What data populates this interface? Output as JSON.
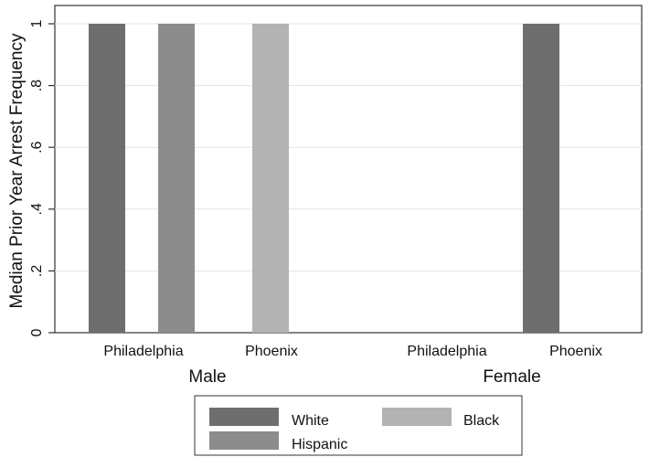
{
  "chart_data": {
    "type": "bar",
    "ylabel": "Median Prior Year Arrest Frequency",
    "ylim": [
      0,
      1
    ],
    "yticks": [
      {
        "value": 0,
        "label": "0"
      },
      {
        "value": 0.2,
        "label": ".2"
      },
      {
        "value": 0.4,
        "label": ".4"
      },
      {
        "value": 0.6,
        "label": ".6"
      },
      {
        "value": 0.8,
        "label": ".8"
      },
      {
        "value": 1,
        "label": "1"
      }
    ],
    "grid": true,
    "legend_position": "bottom",
    "series": [
      {
        "name": "White",
        "color": "#6e6e6e"
      },
      {
        "name": "Hispanic",
        "color": "#8c8c8c"
      },
      {
        "name": "Black",
        "color": "#b3b3b3"
      }
    ],
    "groups": [
      {
        "label": "Male",
        "categories": [
          {
            "label": "Philadelphia",
            "values": {
              "White": 1,
              "Hispanic": 1,
              "Black": 0
            }
          },
          {
            "label": "Phoenix",
            "values": {
              "White": 0,
              "Hispanic": 0,
              "Black": 1
            }
          }
        ]
      },
      {
        "label": "Female",
        "categories": [
          {
            "label": "Philadelphia",
            "values": {
              "White": 0,
              "Hispanic": 0,
              "Black": 0
            }
          },
          {
            "label": "Phoenix",
            "values": {
              "White": 1,
              "Hispanic": 0,
              "Black": 0
            }
          }
        ]
      }
    ]
  }
}
